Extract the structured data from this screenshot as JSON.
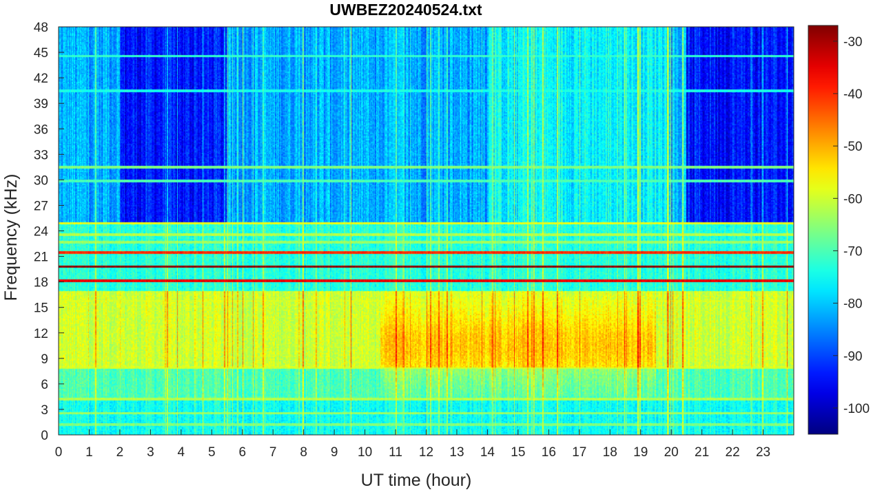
{
  "chart_data": {
    "type": "heatmap",
    "title": "UWBEZ20240524.txt",
    "xlabel": "UT time (hour)",
    "ylabel": "Frequency (kHz)",
    "xlim": [
      0,
      24
    ],
    "ylim": [
      0,
      48
    ],
    "x_ticks": [
      0,
      1,
      2,
      3,
      4,
      5,
      6,
      7,
      8,
      9,
      10,
      11,
      12,
      13,
      14,
      15,
      16,
      17,
      18,
      19,
      20,
      21,
      22,
      23
    ],
    "y_ticks": [
      0,
      3,
      6,
      9,
      12,
      15,
      18,
      21,
      24,
      27,
      30,
      33,
      36,
      39,
      42,
      45,
      48
    ],
    "colormap": "jet",
    "color_range": [
      -105,
      -27
    ],
    "colorbar_ticks": [
      -30,
      -40,
      -50,
      -60,
      -70,
      -80,
      -90,
      -100
    ],
    "grid": false,
    "background_levels": [
      {
        "f_range": [
          0,
          4
        ],
        "level": -75
      },
      {
        "f_range": [
          4,
          8
        ],
        "level": -70
      },
      {
        "f_range": [
          8,
          17
        ],
        "level": -60
      },
      {
        "f_range": [
          17,
          25
        ],
        "level": -73
      },
      {
        "f_range": [
          25,
          48
        ],
        "level": -82
      }
    ],
    "quiet_hours": [
      [
        2,
        5.5
      ],
      [
        20.5,
        24
      ]
    ],
    "active_hours": [
      [
        10.5,
        19.5
      ]
    ],
    "bands": [
      {
        "freq_khz": 19.8,
        "level": -28
      },
      {
        "freq_khz": 18.2,
        "level": -35
      },
      {
        "freq_khz": 21.4,
        "level": -40
      },
      {
        "freq_khz": 24.9,
        "level": -58
      },
      {
        "freq_khz": 23.6,
        "level": -62
      },
      {
        "freq_khz": 22.6,
        "level": -64
      },
      {
        "freq_khz": 4.2,
        "level": -62
      },
      {
        "freq_khz": 8.0,
        "level": -60
      },
      {
        "freq_khz": 15.8,
        "level": -60
      },
      {
        "freq_khz": 31.5,
        "level": -66
      },
      {
        "freq_khz": 44.5,
        "level": -72
      },
      {
        "freq_khz": 40.5,
        "level": -74
      },
      {
        "freq_khz": 29.8,
        "level": -70
      },
      {
        "freq_khz": 2.5,
        "level": -64
      },
      {
        "freq_khz": 1.2,
        "level": -66
      }
    ]
  }
}
